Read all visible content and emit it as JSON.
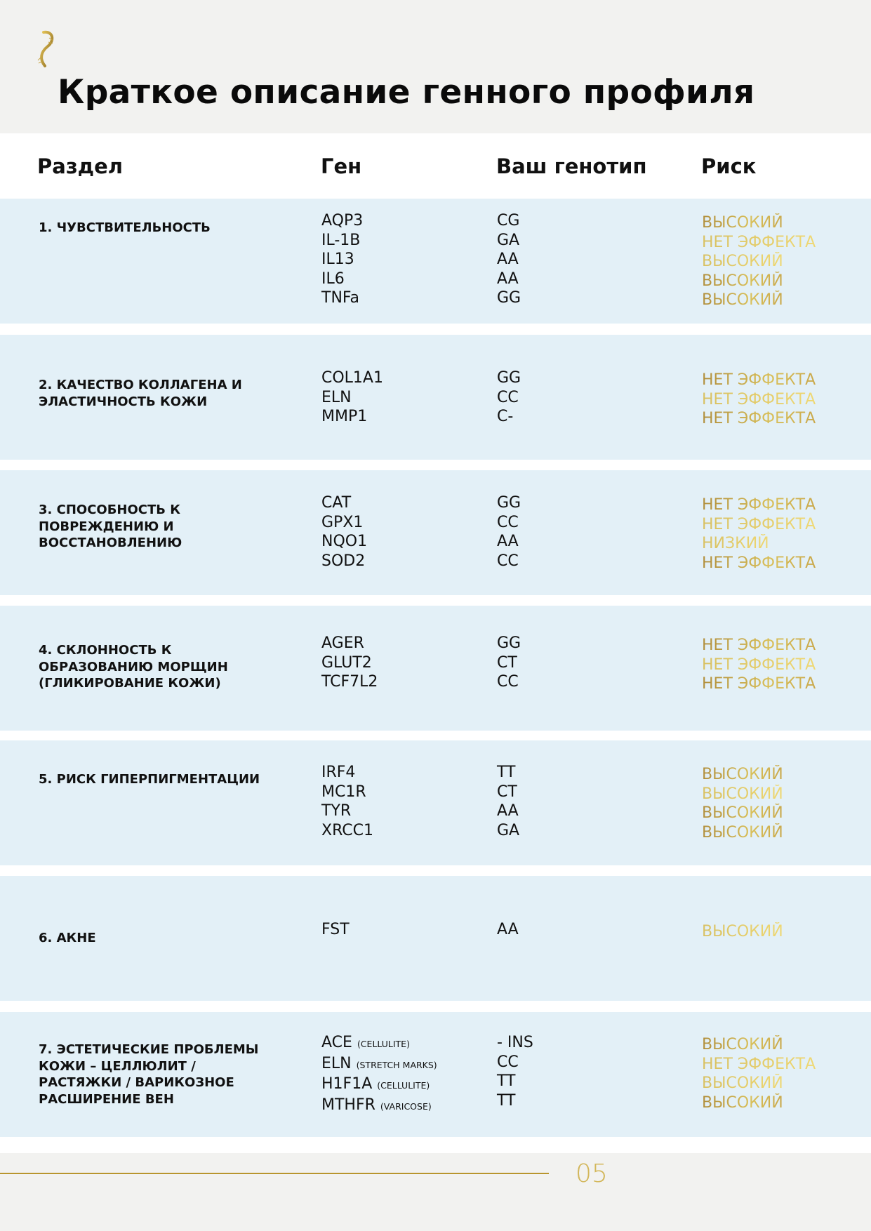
{
  "header": {
    "title": "Краткое описание генного профиля",
    "logo": "golden DNA helix"
  },
  "columns": {
    "section": "Раздел",
    "gene": "Ген",
    "genotype": "Ваш генотип",
    "risk": "Риск"
  },
  "colors": {
    "row_bg": "#e3f0f7",
    "accent_gold": "#c9a84a",
    "page_bg": "#f2f2f0"
  },
  "rows": [
    {
      "section": "1. Чувствительность",
      "genes": [
        {
          "name": "AQP3"
        },
        {
          "name": "IL-1B"
        },
        {
          "name": "IL13"
        },
        {
          "name": "IL6"
        },
        {
          "name": "TNFa"
        }
      ],
      "genotypes": [
        "CG",
        "GA",
        "AA",
        "AA",
        "GG"
      ],
      "risks": [
        "ВЫСОКИЙ",
        "НЕТ ЭФФЕКТА",
        "ВЫСОКИЙ",
        "ВЫСОКИЙ",
        "ВЫСОКИЙ"
      ]
    },
    {
      "section": "2. Качество коллагена и эластичность кожи",
      "genes": [
        {
          "name": "COL1A1"
        },
        {
          "name": "ELN"
        },
        {
          "name": "MMP1"
        }
      ],
      "genotypes": [
        "GG",
        "CC",
        "C-"
      ],
      "risks": [
        "НЕТ ЭФФЕКТА",
        "НЕТ ЭФФЕКТА",
        "НЕТ ЭФФЕКТА"
      ]
    },
    {
      "section": "3. Способность к повреждению и восстановлению",
      "genes": [
        {
          "name": "CAT"
        },
        {
          "name": "GPX1"
        },
        {
          "name": "NQO1"
        },
        {
          "name": "SOD2"
        }
      ],
      "genotypes": [
        "GG",
        "CC",
        "AA",
        "CC"
      ],
      "risks": [
        "НЕТ ЭФФЕКТА",
        "НЕТ ЭФФЕКТА",
        "НИЗКИЙ",
        "НЕТ ЭФФЕКТА"
      ]
    },
    {
      "section": "4. Склонность к образованию морщин (гликирование кожи)",
      "genes": [
        {
          "name": "AGER"
        },
        {
          "name": "GLUT2"
        },
        {
          "name": "TCF7L2"
        }
      ],
      "genotypes": [
        "GG",
        "CT",
        "CC"
      ],
      "risks": [
        "НЕТ ЭФФЕКТА",
        "НЕТ ЭФФЕКТА",
        "НЕТ ЭФФЕКТА"
      ]
    },
    {
      "section": "5. Риск гиперпигментации",
      "genes": [
        {
          "name": "IRF4"
        },
        {
          "name": "MC1R"
        },
        {
          "name": "TYR"
        },
        {
          "name": "XRCC1"
        }
      ],
      "genotypes": [
        "TT",
        "CT",
        "AA",
        "GA"
      ],
      "risks": [
        "ВЫСОКИЙ",
        "ВЫСОКИЙ",
        "ВЫСОКИЙ",
        "ВЫСОКИЙ"
      ]
    },
    {
      "section": "6. Акне",
      "genes": [
        {
          "name": "FST"
        }
      ],
      "genotypes": [
        "AA"
      ],
      "risks": [
        "ВЫСОКИЙ"
      ]
    },
    {
      "section": "7. Эстетические проблемы кожи – целлюлит / растяжки / варикозное расширение вен",
      "genes": [
        {
          "name": "ACE",
          "note": "(CELLULITE)"
        },
        {
          "name": "ELN",
          "note": "(STRETCH MARKS)"
        },
        {
          "name": "H1F1A",
          "note": "(CELLULITE)"
        },
        {
          "name": "MTHFR",
          "note": "(VARICOSE)"
        }
      ],
      "genotypes": [
        "- INS",
        "CC",
        "TT",
        "TT"
      ],
      "risks": [
        "ВЫСОКИЙ",
        "НЕТ ЭФФЕКТА",
        "ВЫСОКИЙ",
        "ВЫСОКИЙ"
      ]
    }
  ],
  "footer": {
    "page_number": "05"
  }
}
